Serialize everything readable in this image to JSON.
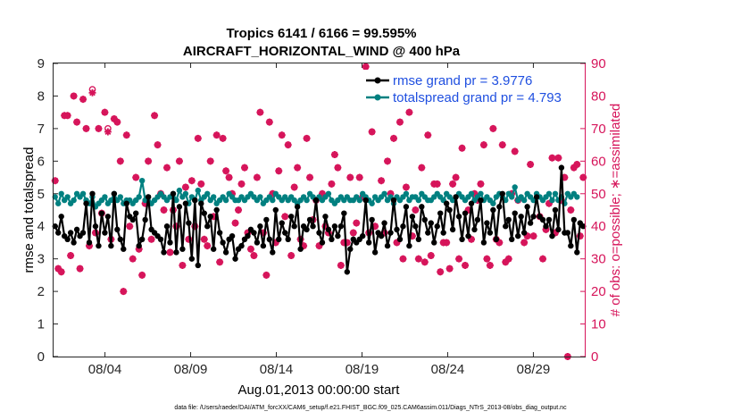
{
  "chart_data": {
    "type": "line",
    "title_line1": "Tropics 6141 / 6166 = 99.595%",
    "title_line2": "AIRCRAFT_HORIZONTAL_WIND @ 400 hPa",
    "xlabel": "Aug.01,2013 00:00:00 start",
    "ylabel_left": "rmse and totalspread",
    "ylabel_right": "# of obs: o=possible; ∗=assimilated",
    "xlim": [
      1.0,
      32.0
    ],
    "ylim_left": [
      0,
      9
    ],
    "ylim_right": [
      0,
      90
    ],
    "yticks_left": [
      "0",
      "1",
      "2",
      "3",
      "4",
      "5",
      "6",
      "7",
      "8",
      "9"
    ],
    "yticks_right": [
      "0",
      "10",
      "20",
      "30",
      "40",
      "50",
      "60",
      "70",
      "80",
      "90"
    ],
    "xticks": [
      {
        "pos": 4,
        "label": "08/04"
      },
      {
        "pos": 9,
        "label": "08/09"
      },
      {
        "pos": 14,
        "label": "08/14"
      },
      {
        "pos": 19,
        "label": "08/19"
      },
      {
        "pos": 24,
        "label": "08/24"
      },
      {
        "pos": 29,
        "label": "08/29"
      }
    ],
    "colors": {
      "rmse": "#000000",
      "spread": "#008080",
      "obs": "#d6145a",
      "legend_text": "#1f4fe0"
    },
    "series": [
      {
        "name": "rmse grand pr = 3.9776",
        "axis": "left",
        "values": [
          4.0,
          3.8,
          4.3,
          3.7,
          3.6,
          3.8,
          3.5,
          3.9,
          3.7,
          3.8,
          4.7,
          3.5,
          5.0,
          4.0,
          3.4,
          4.4,
          3.8,
          4.3,
          3.4,
          5.0,
          3.9,
          3.6,
          3.3,
          4.7,
          4.3,
          4.2,
          4.4,
          3.4,
          3.6,
          4.2,
          4.9,
          3.9,
          3.8,
          3.7,
          3.6,
          3.2,
          4.0,
          3.5,
          5.0,
          3.2,
          4.6,
          3.3,
          4.7,
          4.1,
          3.0,
          4.8,
          2.8,
          4.7,
          4.4,
          4.0,
          4.3,
          3.3,
          4.5,
          3.8,
          3.5,
          3.2,
          3.6,
          3.7,
          3.0,
          3.3,
          3.4,
          3.6,
          3.7,
          3.9,
          3.8,
          3.5,
          4.0,
          3.4,
          4.2,
          3.6,
          3.2,
          4.5,
          3.6,
          4.1,
          3.8,
          3.6,
          4.3,
          4.0,
          4.6,
          3.3,
          4.0,
          3.9,
          4.2,
          4.0,
          4.8,
          3.8,
          3.5,
          4.3,
          3.9,
          3.6,
          4.0,
          3.7,
          4.0,
          4.4,
          2.6,
          3.3,
          3.6,
          3.5,
          3.6,
          3.7,
          4.8,
          3.5,
          4.2,
          3.2,
          3.8,
          3.7,
          4.1,
          3.4,
          3.8,
          4.8,
          3.9,
          3.6,
          4.0,
          4.6,
          3.4,
          4.3,
          4.0,
          3.6,
          4.6,
          4.2,
          3.8,
          4.1,
          3.5,
          4.0,
          4.4,
          3.8,
          4.7,
          4.5,
          3.9,
          4.9,
          4.3,
          3.6,
          4.4,
          3.7,
          4.7,
          3.9,
          4.2,
          4.8,
          3.5,
          4.1,
          3.8,
          4.5,
          3.6,
          4.6,
          5.0,
          4.0,
          4.2,
          3.6,
          4.4,
          3.7,
          4.3,
          3.8,
          4.6,
          4.1,
          4.3,
          4.9,
          4.3,
          4.2,
          4.0,
          4.2,
          3.7,
          4.5,
          3.9,
          5.8,
          3.8,
          3.8,
          3.4,
          4.2,
          3.2,
          4.1,
          4.0
        ]
      },
      {
        "name": "totalspread grand pr = 4.793",
        "axis": "left",
        "values": [
          4.9,
          4.7,
          5.0,
          4.8,
          4.9,
          4.7,
          4.8,
          5.0,
          4.9,
          5.0,
          4.8,
          4.7,
          4.9,
          4.6,
          4.7,
          4.8,
          4.9,
          4.7,
          4.8,
          5.0,
          4.8,
          4.9,
          4.7,
          4.8,
          4.8,
          4.7,
          4.8,
          4.9,
          5.4,
          4.8,
          4.9,
          4.7,
          4.8,
          4.9,
          5.0,
          4.9,
          4.8,
          4.9,
          5.0,
          4.8,
          5.1,
          4.9,
          5.0,
          4.7,
          4.9,
          4.8,
          5.1,
          4.8,
          4.9,
          5.0,
          4.8,
          4.9,
          4.7,
          4.8,
          4.9,
          4.8,
          5.0,
          4.9,
          4.8,
          4.8,
          4.9,
          4.8,
          4.9,
          5.0,
          4.9,
          4.8,
          4.9,
          4.7,
          4.8,
          4.9,
          4.8,
          5.0,
          4.9,
          4.8,
          4.9,
          4.8,
          4.9,
          4.8,
          4.7,
          4.8,
          4.9,
          4.8,
          5.0,
          4.9,
          4.8,
          4.9,
          4.8,
          4.9,
          5.0,
          4.8,
          4.7,
          4.8,
          4.9,
          4.8,
          4.9,
          4.8,
          4.8,
          4.9,
          4.8,
          5.0,
          4.9,
          4.8,
          4.7,
          4.9,
          4.8,
          4.9,
          5.0,
          4.8,
          4.9,
          4.7,
          4.9,
          4.8,
          4.9,
          5.0,
          4.8,
          4.9,
          4.9,
          4.8,
          5.0,
          4.9,
          4.8,
          4.8,
          4.9,
          5.0,
          4.9,
          4.8,
          5.0,
          4.9,
          4.8,
          4.9,
          5.0,
          4.9,
          4.8,
          4.9,
          5.0,
          4.8,
          4.9,
          5.0,
          4.8,
          4.9,
          4.8,
          4.7,
          4.9,
          5.0,
          4.9,
          4.8,
          5.0,
          4.9,
          5.2,
          4.8,
          4.9,
          4.8,
          5.0,
          4.9,
          4.8,
          5.0,
          4.9,
          4.8,
          4.9,
          5.0,
          4.8,
          5.0,
          4.8,
          4.9,
          4.7,
          5.0,
          4.9,
          5.0,
          4.9
        ]
      },
      {
        "name": "obs_possible",
        "axis": "right",
        "values": [
          54,
          27,
          26,
          74,
          74,
          31,
          80,
          72,
          27,
          79,
          70,
          34,
          82,
          38,
          70,
          44,
          75,
          70,
          36,
          73,
          72,
          60,
          20,
          68,
          40,
          30,
          55,
          33,
          25,
          47,
          60,
          36,
          74,
          65,
          50,
          45,
          58,
          32,
          45,
          40,
          60,
          28,
          52,
          36,
          54,
          40,
          67,
          53,
          36,
          34,
          60,
          43,
          68,
          29,
          67,
          57,
          55,
          50,
          41,
          45,
          53,
          58,
          38,
          33,
          31,
          55,
          75,
          38,
          25,
          72,
          50,
          35,
          57,
          68,
          43,
          65,
          31,
          52,
          58,
          36,
          34,
          67,
          55,
          42,
          48,
          34,
          50,
          40,
          38,
          53,
          62,
          58,
          28,
          35,
          35,
          55,
          38,
          41,
          55,
          49,
          89,
          38,
          69,
          40,
          78,
          54,
          38,
          60,
          50,
          67,
          35,
          72,
          30,
          52,
          75,
          37,
          45,
          30,
          58,
          29,
          68,
          31,
          53,
          53,
          26,
          35,
          35,
          27,
          53,
          55,
          30,
          64,
          28,
          45,
          36,
          50,
          48,
          53,
          65,
          30,
          28,
          70,
          36,
          35,
          65,
          29,
          30,
          50,
          63,
          48,
          83,
          35,
          37,
          59,
          37,
          84,
          43,
          30,
          39,
          47,
          61,
          38,
          61,
          48,
          55,
          0,
          45,
          58,
          59,
          37,
          55
        ]
      },
      {
        "name": "obs_assimilated",
        "axis": "right",
        "values": [
          54,
          27,
          26,
          74,
          74,
          31,
          80,
          72,
          27,
          79,
          70,
          34,
          81,
          38,
          70,
          44,
          75,
          69,
          36,
          73,
          72,
          60,
          20,
          68,
          40,
          30,
          55,
          33,
          25,
          47,
          60,
          36,
          74,
          65,
          50,
          45,
          58,
          32,
          45,
          40,
          60,
          28,
          52,
          36,
          54,
          40,
          67,
          53,
          36,
          34,
          60,
          43,
          68,
          29,
          67,
          57,
          55,
          50,
          41,
          45,
          53,
          58,
          38,
          33,
          31,
          55,
          75,
          38,
          25,
          72,
          50,
          35,
          57,
          68,
          43,
          65,
          31,
          52,
          58,
          36,
          34,
          67,
          55,
          42,
          48,
          34,
          50,
          40,
          38,
          53,
          62,
          58,
          28,
          35,
          35,
          55,
          38,
          41,
          55,
          49,
          89,
          38,
          69,
          40,
          78,
          54,
          38,
          60,
          50,
          67,
          35,
          72,
          30,
          52,
          75,
          37,
          45,
          30,
          58,
          29,
          68,
          31,
          53,
          53,
          26,
          35,
          35,
          27,
          53,
          55,
          30,
          64,
          28,
          45,
          36,
          50,
          48,
          53,
          65,
          30,
          28,
          70,
          36,
          35,
          65,
          29,
          30,
          50,
          63,
          48,
          82,
          35,
          37,
          59,
          37,
          84,
          43,
          30,
          39,
          47,
          61,
          38,
          61,
          48,
          55,
          0,
          45,
          58,
          59,
          37,
          55
        ]
      }
    ],
    "legend_position": "top-right",
    "footer_text": "data file: /Users/raeder/DAI/ATM_forcXX/CAM6_setup/f.e21.FHIST_BGC.f09_025.CAM6assim.011/Diags_NTrS_2013-08/obs_diag_output.nc"
  }
}
